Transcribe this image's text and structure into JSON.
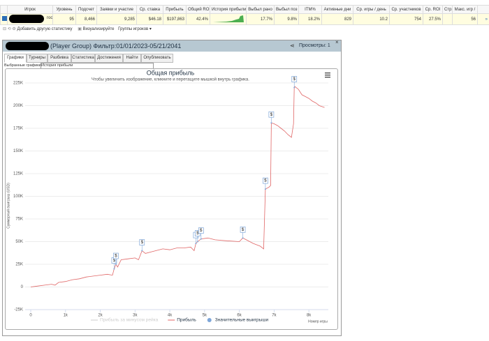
{
  "table": {
    "headers": [
      "Игрок",
      "Уровень",
      "Подсчет",
      "Заявки и участие",
      "Ср. ставка",
      "Прибыль",
      "Общий ROI",
      "История прибыли",
      "Выбыл рано",
      "Выбыл поз",
      "ITM%",
      "Активные дни",
      "Ср. игры / день",
      "Ср. участников",
      "Ср. ROI",
      "Стр.",
      "Макс. игр /"
    ],
    "row": {
      "player": "гос",
      "level": "95",
      "count": "8,466",
      "entries": "9,285",
      "avg_stake": "$46.18",
      "profit": "$197,863",
      "roi": "42.4%",
      "early": "17.7%",
      "late": "9.8%",
      "itm": "18.2%",
      "active_days": "829",
      "games_per_day": "10.2",
      "avg_players": "754",
      "avg_roi": "27.5%",
      "max_games": "56",
      "more": "»"
    }
  },
  "toolbar": {
    "add_stat": "Добавить другую статистику",
    "visualize": "Визуализируйте",
    "groups": "Группы игроков ▾"
  },
  "dialog": {
    "title": "(Player Group) Фильтр:01/01/2023-05/21/2041",
    "views": "Просмотры: 1",
    "tabs": [
      "Графики",
      "Турниры",
      "Разбивка",
      "Статистика",
      "Достижения",
      "Найти",
      "Опубликовать"
    ],
    "select_label": "Выбранные графики:",
    "select_value": "История прибыли"
  },
  "chart_data": {
    "type": "line",
    "title": "Общая прибыль",
    "subtitle": "Чтобы увеличить изображение, кликните и перетащите мышкой внутрь графика.",
    "x_label": "Номер игры",
    "y_label": "Суммарный выигрыш (USD)",
    "marker_label": "$",
    "xlim": [
      0,
      8560
    ],
    "ylim": [
      -25000,
      225000
    ],
    "grid": true,
    "xticks": [
      0,
      {
        "value": 1000,
        "label": "1k"
      },
      {
        "value": 2000,
        "label": "2k"
      },
      {
        "value": 3000,
        "label": "3k"
      },
      {
        "value": 4000,
        "label": "4k"
      },
      {
        "value": 5000,
        "label": "5k"
      },
      {
        "value": 6000,
        "label": "6k"
      },
      {
        "value": 7000,
        "label": "7k"
      },
      {
        "value": 8000,
        "label": "8k"
      }
    ],
    "yticks": [
      {
        "value": -25000,
        "label": "-25K"
      },
      0,
      {
        "value": 25000,
        "label": "25K"
      },
      {
        "value": 50000,
        "label": "50K"
      },
      {
        "value": 75000,
        "label": "75K"
      },
      {
        "value": 100000,
        "label": "100K"
      },
      {
        "value": 125000,
        "label": "125K"
      },
      {
        "value": 150000,
        "label": "150K"
      },
      {
        "value": 175000,
        "label": "175K"
      },
      {
        "value": 200000,
        "label": "200K"
      },
      {
        "value": 225000,
        "label": "225K"
      }
    ],
    "series": [
      {
        "name": "Прибыль за минусом рейка",
        "color": "#cccccc",
        "visible": false
      },
      {
        "name": "Прибыль",
        "color": "#e06666",
        "x": [
          0,
          200,
          400,
          600,
          700,
          800,
          1000,
          1200,
          1400,
          1600,
          1800,
          2000,
          2200,
          2350,
          2400,
          2450,
          2500,
          2600,
          2800,
          3000,
          3100,
          3200,
          3300,
          3500,
          3800,
          4000,
          4200,
          4400,
          4600,
          4700,
          4750,
          4800,
          4900,
          5100,
          5300,
          5600,
          6000,
          6100,
          6200,
          6400,
          6600,
          6700,
          6750,
          6850,
          6900,
          6920,
          7000,
          7100,
          7200,
          7300,
          7400,
          7500,
          7560,
          7580,
          7600,
          7700,
          7800,
          7900,
          8000,
          8100,
          8200,
          8300,
          8450
        ],
        "values": [
          0,
          1000,
          2000,
          3000,
          2000,
          5000,
          6000,
          8000,
          9000,
          11000,
          12000,
          13000,
          14000,
          13000,
          20000,
          25000,
          22000,
          30000,
          31000,
          32000,
          30000,
          40000,
          37000,
          39000,
          42000,
          41000,
          43000,
          43000,
          44000,
          40000,
          48000,
          50000,
          53000,
          54000,
          52000,
          51000,
          50000,
          54000,
          52000,
          48000,
          45000,
          42000,
          108000,
          110000,
          112000,
          181000,
          180000,
          178000,
          175000,
          172000,
          168000,
          165000,
          180000,
          220000,
          221000,
          218000,
          212000,
          210000,
          208000,
          205000,
          203000,
          200000,
          198000
        ]
      },
      {
        "name": "Значительные выигрыши",
        "color": "#7ea6d8",
        "x": [
          2400,
          2450,
          3200,
          4750,
          4800,
          4900,
          6100,
          6750,
          6920,
          7580
        ],
        "values": [
          20000,
          25000,
          40000,
          48000,
          50000,
          53000,
          54000,
          108000,
          181000,
          220000
        ]
      }
    ]
  }
}
